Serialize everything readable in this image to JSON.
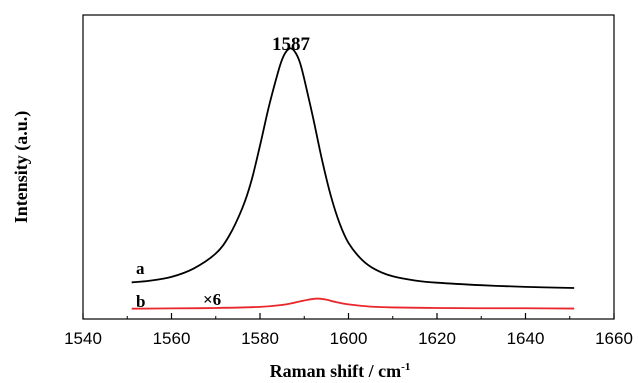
{
  "chart_data": {
    "type": "line",
    "title": "",
    "xlabel": "Raman shift / cm",
    "xlabel_superscript": "-1",
    "ylabel": "Intensity (a.u.)",
    "xlim": [
      1540,
      1660
    ],
    "ylim": [
      0,
      1
    ],
    "x_ticks": [
      1540,
      1560,
      1580,
      1600,
      1620,
      1640,
      1660
    ],
    "y_ticks_shown": false,
    "grid": false,
    "legend": "none",
    "annotations": {
      "peak": {
        "text": "1587",
        "x": 1587
      },
      "label_a": "a",
      "label_b": "b",
      "scale_factor": "×6"
    },
    "series": [
      {
        "label": "a",
        "color": "#000000",
        "x": [
          1551,
          1555,
          1560,
          1565,
          1570,
          1573,
          1576,
          1578,
          1580,
          1582,
          1584,
          1585,
          1586,
          1587,
          1588,
          1589,
          1590,
          1592,
          1594,
          1596,
          1598,
          1600,
          1603,
          1606,
          1610,
          1615,
          1620,
          1630,
          1640,
          1651
        ],
        "y": [
          0.128,
          0.134,
          0.148,
          0.178,
          0.232,
          0.295,
          0.395,
          0.49,
          0.62,
          0.76,
          0.88,
          0.93,
          0.96,
          0.97,
          0.955,
          0.92,
          0.86,
          0.72,
          0.57,
          0.44,
          0.34,
          0.27,
          0.21,
          0.175,
          0.15,
          0.135,
          0.127,
          0.118,
          0.112,
          0.108
        ]
      },
      {
        "label": "b",
        "color": "#e8262b",
        "x": [
          1551,
          1560,
          1570,
          1580,
          1585,
          1588,
          1591,
          1593,
          1595,
          1597,
          1600,
          1605,
          1610,
          1620,
          1630,
          1640,
          1651
        ],
        "y": [
          0.0335,
          0.0345,
          0.036,
          0.04,
          0.047,
          0.056,
          0.066,
          0.07,
          0.066,
          0.058,
          0.049,
          0.041,
          0.038,
          0.036,
          0.035,
          0.035,
          0.034
        ]
      }
    ]
  }
}
